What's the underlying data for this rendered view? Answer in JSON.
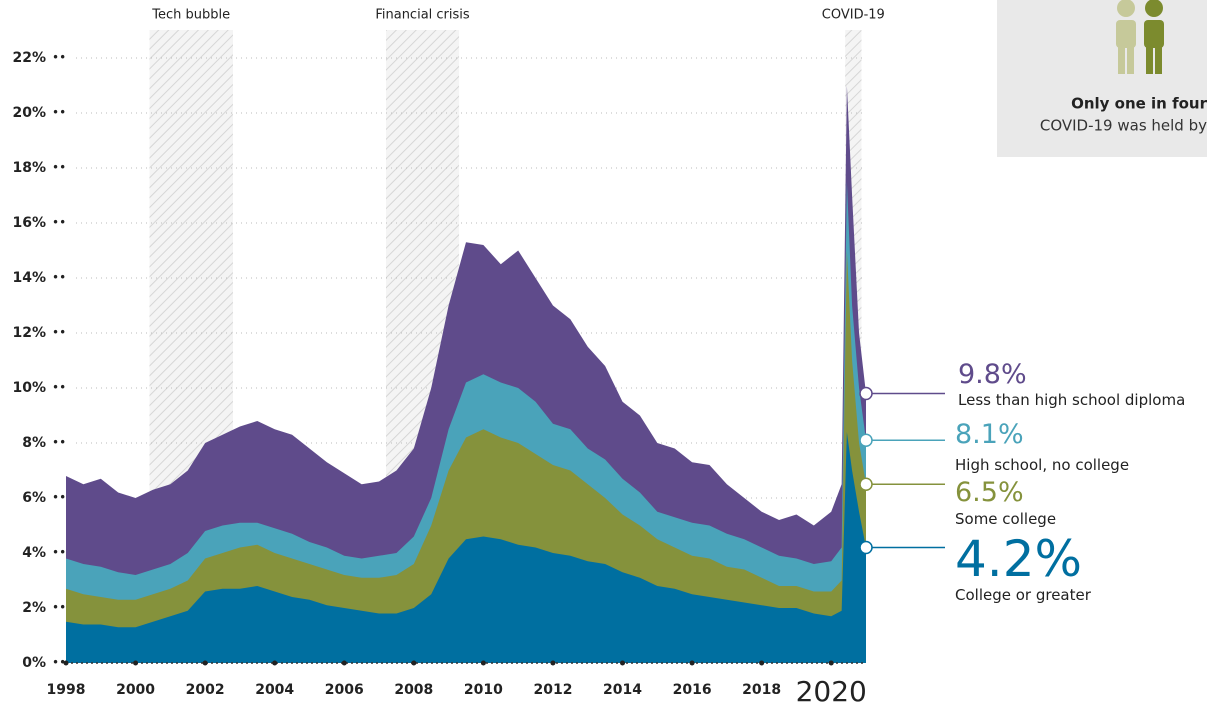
{
  "chart_data": {
    "type": "area",
    "x": [
      1998,
      1998.5,
      1999,
      1999.5,
      2000,
      2000.5,
      2001,
      2001.5,
      2002,
      2002.5,
      2003,
      2003.5,
      2004,
      2004.5,
      2005,
      2005.5,
      2006,
      2006.5,
      2007,
      2007.5,
      2008,
      2008.5,
      2009,
      2009.5,
      2010,
      2010.5,
      2011,
      2011.5,
      2012,
      2012.5,
      2013,
      2013.5,
      2014,
      2014.5,
      2015,
      2015.5,
      2016,
      2016.5,
      2017,
      2017.5,
      2018,
      2018.5,
      2019,
      2019.5,
      2020,
      2020.3,
      2020.45,
      2020.6,
      2020.8,
      2021
    ],
    "series": [
      {
        "name": "Less than high school diploma",
        "color": "#5f4b8b",
        "end_label": "9.8%",
        "values": [
          6.8,
          6.5,
          6.7,
          6.2,
          6.0,
          6.3,
          6.5,
          7.0,
          8.0,
          8.3,
          8.6,
          8.8,
          8.5,
          8.3,
          7.8,
          7.3,
          6.9,
          6.5,
          6.6,
          7.0,
          7.8,
          10.0,
          13.0,
          15.3,
          15.2,
          14.5,
          15.0,
          14.0,
          13.0,
          12.5,
          11.5,
          10.8,
          9.5,
          9.0,
          8.0,
          7.8,
          7.3,
          7.2,
          6.5,
          6.0,
          5.5,
          5.2,
          5.4,
          5.0,
          5.5,
          6.5,
          21.0,
          17.0,
          12.0,
          9.8
        ]
      },
      {
        "name": "High school, no college",
        "color": "#4aa3ba",
        "end_label": "8.1%",
        "values": [
          3.8,
          3.6,
          3.5,
          3.3,
          3.2,
          3.4,
          3.6,
          4.0,
          4.8,
          5.0,
          5.1,
          5.1,
          4.9,
          4.7,
          4.4,
          4.2,
          3.9,
          3.8,
          3.9,
          4.0,
          4.6,
          6.0,
          8.5,
          10.2,
          10.5,
          10.2,
          10.0,
          9.5,
          8.7,
          8.5,
          7.8,
          7.4,
          6.7,
          6.2,
          5.5,
          5.3,
          5.1,
          5.0,
          4.7,
          4.5,
          4.2,
          3.9,
          3.8,
          3.6,
          3.7,
          4.2,
          17.5,
          13.0,
          10.0,
          8.1
        ]
      },
      {
        "name": "Some college",
        "color": "#85923c",
        "end_label": "6.5%",
        "values": [
          2.7,
          2.5,
          2.4,
          2.3,
          2.3,
          2.5,
          2.7,
          3.0,
          3.8,
          4.0,
          4.2,
          4.3,
          4.0,
          3.8,
          3.6,
          3.4,
          3.2,
          3.1,
          3.1,
          3.2,
          3.6,
          5.0,
          7.0,
          8.2,
          8.5,
          8.2,
          8.0,
          7.6,
          7.2,
          7.0,
          6.5,
          6.0,
          5.4,
          5.0,
          4.5,
          4.2,
          3.9,
          3.8,
          3.5,
          3.4,
          3.1,
          2.8,
          2.8,
          2.6,
          2.6,
          3.0,
          15.0,
          11.0,
          8.0,
          6.5
        ]
      },
      {
        "name": "College or greater",
        "color": "#006fa0",
        "end_label": "4.2%",
        "values": [
          1.5,
          1.4,
          1.4,
          1.3,
          1.3,
          1.5,
          1.7,
          1.9,
          2.6,
          2.7,
          2.7,
          2.8,
          2.6,
          2.4,
          2.3,
          2.1,
          2.0,
          1.9,
          1.8,
          1.8,
          2.0,
          2.5,
          3.8,
          4.5,
          4.6,
          4.5,
          4.3,
          4.2,
          4.0,
          3.9,
          3.7,
          3.6,
          3.3,
          3.1,
          2.8,
          2.7,
          2.5,
          2.4,
          2.3,
          2.2,
          2.1,
          2.0,
          2.0,
          1.8,
          1.7,
          1.9,
          8.4,
          7.0,
          5.5,
          4.2
        ]
      }
    ],
    "xlim": [
      1998,
      2021
    ],
    "xticks": [
      1998,
      2000,
      2002,
      2004,
      2006,
      2008,
      2010,
      2012,
      2014,
      2016,
      2018,
      2020
    ],
    "ylim": [
      0,
      22
    ],
    "yticks": [
      {
        "value": 0,
        "label": "0%"
      },
      {
        "value": 2,
        "label": "2%"
      },
      {
        "value": 4,
        "label": "4%"
      },
      {
        "value": 6,
        "label": "6%"
      },
      {
        "value": 8,
        "label": "8%"
      },
      {
        "value": 10,
        "label": "10%"
      },
      {
        "value": 12,
        "label": "12%"
      },
      {
        "value": 14,
        "label": "14%"
      },
      {
        "value": 16,
        "label": "16%"
      },
      {
        "value": 18,
        "label": "18%"
      },
      {
        "value": 20,
        "label": "20%"
      },
      {
        "value": 22,
        "label": "22%"
      }
    ],
    "grid": true,
    "shaded_periods": [
      {
        "label": "Tech bubble",
        "start": 2000.4,
        "end": 2002.8
      },
      {
        "label": "Financial crisis",
        "start": 2007.2,
        "end": 2009.3
      },
      {
        "label": "COVID-19",
        "start": 2020.4,
        "end": 2020.87
      }
    ],
    "card": {
      "title": "Only one in four",
      "text": "COVID-19 was held by"
    }
  }
}
